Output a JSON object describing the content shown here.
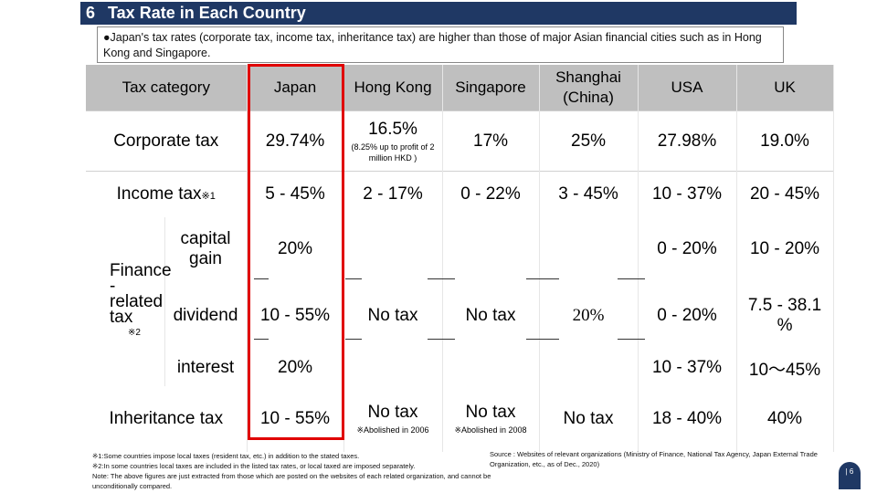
{
  "header": {
    "number": "6",
    "title": "Tax Rate in Each Country"
  },
  "intro": "●Japan's tax rates (corporate tax, income tax, inheritance tax) are higher than those of major Asian financial cities such as in Hong Kong and Singapore.",
  "table": {
    "columns": [
      "Tax category",
      "Japan",
      "Hong Kong",
      "Singapore",
      "Shanghai (China)",
      "USA",
      "UK"
    ],
    "corporate": {
      "label": "Corporate tax",
      "japan": "29.74%",
      "hongkong": "16.5%",
      "hongkong_note": "(8.25% up to profit of 2 million HKD )",
      "singapore": "17%",
      "shanghai": "25%",
      "usa": "27.98%",
      "uk": "19.0%"
    },
    "income": {
      "label": "Income tax",
      "mark": "※1",
      "japan": "5 - 45%",
      "hongkong": "2 - 17%",
      "singapore": "0 - 22%",
      "shanghai": "3 - 45%",
      "usa": "10 - 37%",
      "uk": "20 - 45%"
    },
    "finance": {
      "label": "Finance -related tax",
      "mark": "※2",
      "capital_gain": {
        "label": "capital gain",
        "japan": "20%",
        "usa": "0 - 20%",
        "uk": "10 - 20%"
      },
      "dividend": {
        "label": "dividend",
        "japan": "10 - 55%",
        "hongkong": "No tax",
        "singapore": "No tax",
        "shanghai": "20%",
        "usa": "0 - 20%",
        "uk": "7.5 - 38.1 %"
      },
      "interest": {
        "label": "interest",
        "japan": "20%",
        "usa": "10 - 37%",
        "uk": "10～45%"
      }
    },
    "inheritance": {
      "label": "Inheritance tax",
      "japan": "10 - 55%",
      "hongkong": "No tax",
      "hongkong_note": "※Abolished in 2006",
      "singapore": "No tax",
      "singapore_note": "※Abolished in 2008",
      "shanghai": "No tax",
      "usa": "18 - 40%",
      "uk": "40%"
    }
  },
  "footnotes": {
    "note1": "※1:Some countries impose local taxes (resident tax, etc.) in addition to the stated taxes.",
    "note2": "※2:In some countries local taxes are included in the listed tax rates, or local taxed are imposed separately.",
    "note3": "Note: The above figures are just extracted from those which are posted on the websites of each related organization, and cannot be unconditionally compared."
  },
  "source": "Source : Websites of relevant organizations (Ministry of Finance, National Tax Agency, Japan External Trade Organization, etc., as of Dec., 2020)",
  "page_badge": "| 6",
  "colors": {
    "title_bar": "#1f3864",
    "header_row": "#bfbfbf",
    "highlight": "#e00000"
  }
}
